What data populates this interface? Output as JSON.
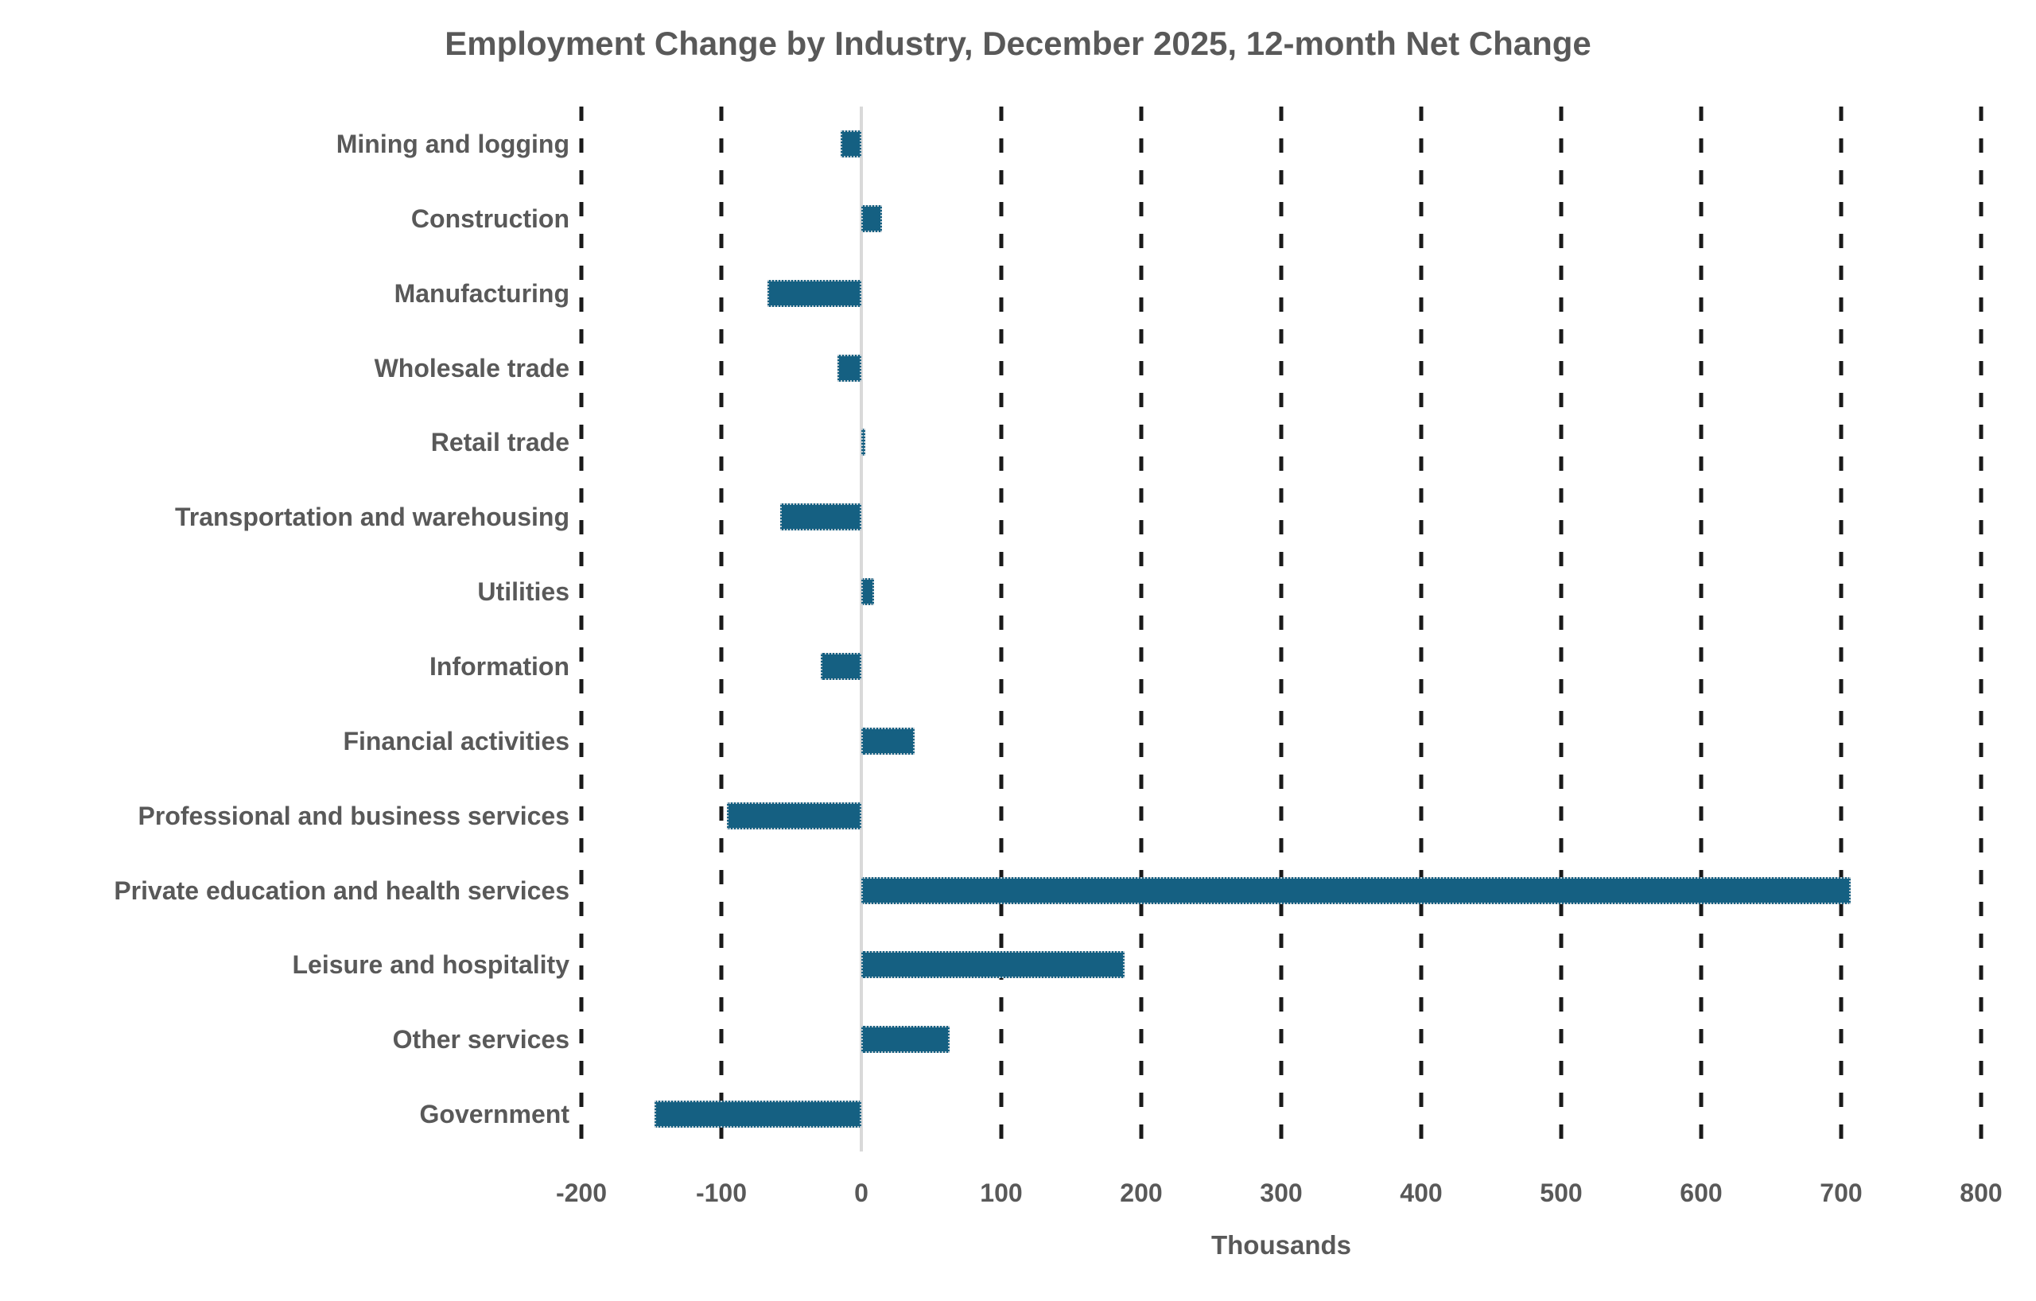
{
  "chart": {
    "title": "Employment Change by Industry, December 2025, 12-month Net Change",
    "xlabel": "Thousands"
  },
  "chart_data": {
    "type": "bar",
    "orientation": "horizontal",
    "title": "Employment Change by Industry, December 2025, 12-month Net Change",
    "xlabel": "Thousands",
    "ylabel": "",
    "categories": [
      "Mining and logging",
      "Construction",
      "Manufacturing",
      "Wholesale trade",
      "Retail trade",
      "Transportation and warehousing",
      "Utilities",
      "Information",
      "Financial activities",
      "Professional and business services",
      "Private education and health services",
      "Leisure and hospitality",
      "Other services",
      "Government"
    ],
    "values": [
      -15,
      15,
      -67,
      -17,
      3,
      -58,
      9,
      -29,
      38,
      -96,
      707,
      188,
      63,
      -148
    ],
    "xlim": [
      -200,
      800
    ],
    "xticks": [
      -200,
      -100,
      0,
      100,
      200,
      300,
      400,
      500,
      600,
      700,
      800
    ],
    "grid": "vertical-dashed-black",
    "legend": "none",
    "bar_color": "#156082",
    "text_color": "#595959",
    "gridline_color": "#1a1a1a",
    "zero_line_color": "#d9d9d9"
  }
}
